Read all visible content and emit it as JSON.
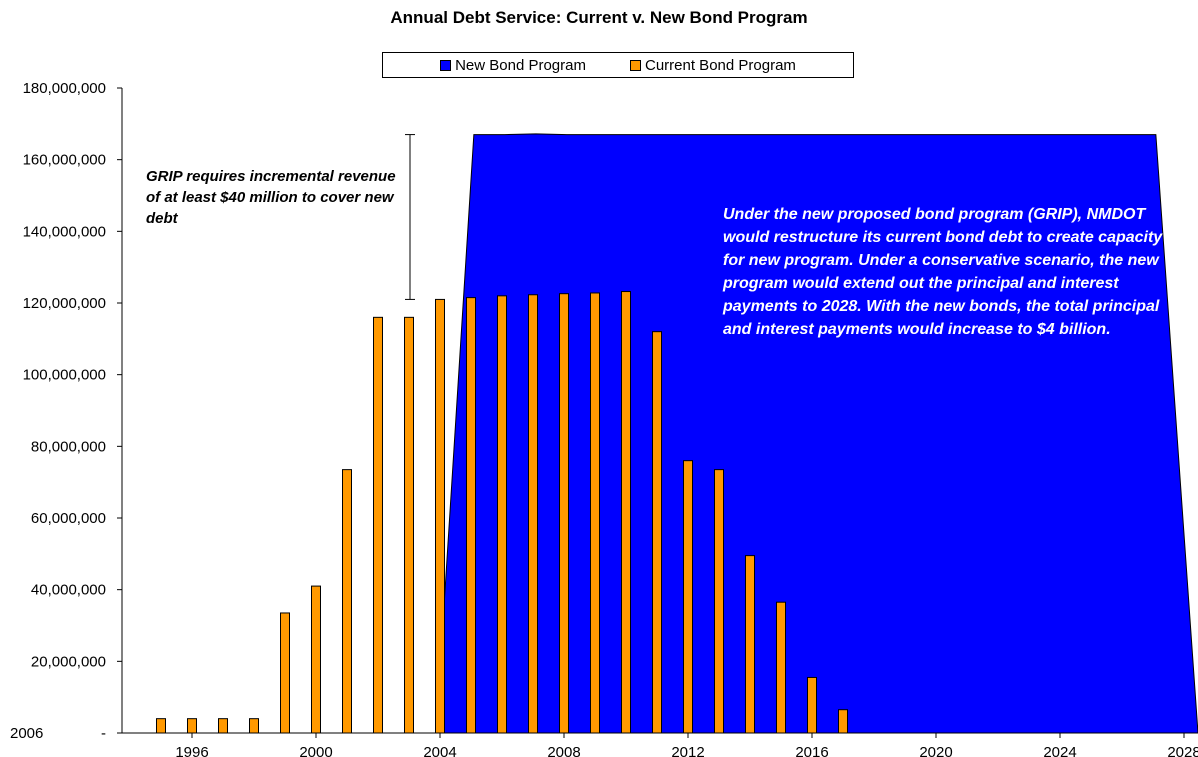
{
  "chart_data": {
    "type": "bar",
    "title": "Annual Debt Service: Current v. New Bond Program",
    "xlabel": "",
    "ylabel": "",
    "ylim": [
      0,
      180000000
    ],
    "y_ticks": [
      "180,000,000",
      "160,000,000",
      "140,000,000",
      "120,000,000",
      "100,000,000",
      "80,000,000",
      "60,000,000",
      "40,000,000",
      "20,000,000",
      "-"
    ],
    "y_zero_extra_label": "2006",
    "x_ticks": [
      "1996",
      "2000",
      "2004",
      "2008",
      "2012",
      "2016",
      "2020",
      "2024",
      "2028"
    ],
    "grid": false,
    "legend_position": "top-center",
    "series": [
      {
        "name": "New Bond Program",
        "type": "area",
        "color": "#0000FF",
        "x": [
          2004,
          2005,
          2006,
          2007,
          2008,
          2009,
          2010,
          2011,
          2012,
          2013,
          2014,
          2015,
          2016,
          2017,
          2018,
          2019,
          2020,
          2021,
          2022,
          2023,
          2024,
          2025,
          2026,
          2027,
          2028
        ],
        "values": [
          0,
          167000000,
          167000000,
          167200000,
          167000000,
          167000000,
          167000000,
          167000000,
          167000000,
          167000000,
          167000000,
          167000000,
          167000000,
          167000000,
          167000000,
          167000000,
          167000000,
          167000000,
          167000000,
          167000000,
          167000000,
          167000000,
          167000000,
          167000000,
          0
        ]
      },
      {
        "name": "Current Bond Program",
        "type": "bar",
        "color": "#FF9900",
        "x": [
          1995,
          1996,
          1997,
          1998,
          1999,
          2000,
          2001,
          2002,
          2003,
          2004,
          2005,
          2006,
          2007,
          2008,
          2009,
          2010,
          2011,
          2012,
          2013,
          2014,
          2015,
          2016,
          2017
        ],
        "values": [
          4000000,
          4000000,
          4000000,
          4000000,
          33500000,
          41000000,
          73500000,
          116000000,
          116000000,
          121000000,
          121500000,
          122000000,
          122300000,
          122600000,
          122800000,
          123200000,
          112000000,
          76000000,
          73500000,
          49500000,
          36500000,
          15500000,
          6500000
        ]
      }
    ],
    "annotations": {
      "grip_note": "GRIP requires incremental revenue of at least $40 million to cover new debt",
      "program_note": "Under the new proposed bond program (GRIP), NMDOT would restructure its current bond debt to create capacity for new program. Under a conservative scenario, the new program would extend out the principal and interest payments to 2028.  With the new bonds, the total principal and interest payments would increase to $4 billion."
    },
    "range_bracket": {
      "x": 2004,
      "low": 121000000,
      "high": 167000000
    }
  }
}
